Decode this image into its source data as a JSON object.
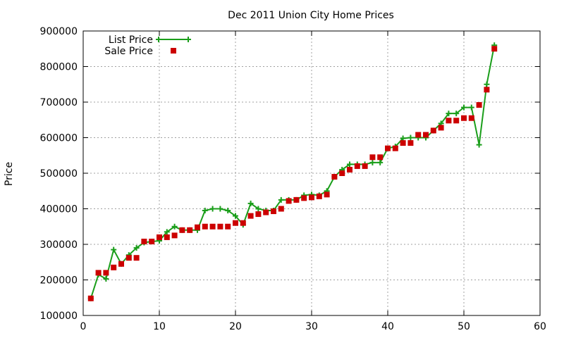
{
  "chart_data": {
    "type": "line",
    "title": "Dec 2011 Union City Home Prices",
    "xlabel": "",
    "ylabel": "Price",
    "xlim": [
      0,
      60
    ],
    "ylim": [
      100000,
      900000
    ],
    "x_ticks": [
      0,
      10,
      20,
      30,
      40,
      50,
      60
    ],
    "y_ticks": [
      100000,
      200000,
      300000,
      400000,
      500000,
      600000,
      700000,
      800000,
      900000
    ],
    "grid": true,
    "legend_position": "top-left",
    "series": [
      {
        "name": "List Price",
        "style": "lines+crosses",
        "color": "#1a9e1a",
        "x": [
          1,
          2,
          3,
          4,
          5,
          6,
          7,
          8,
          9,
          10,
          11,
          12,
          13,
          14,
          15,
          16,
          17,
          18,
          19,
          20,
          21,
          22,
          23,
          24,
          25,
          26,
          27,
          28,
          29,
          30,
          31,
          32,
          33,
          34,
          35,
          36,
          37,
          38,
          39,
          40,
          41,
          42,
          43,
          44,
          45,
          46,
          47,
          48,
          49,
          50,
          51,
          52,
          53,
          54
        ],
        "y": [
          148000,
          215000,
          203000,
          285000,
          245000,
          270000,
          290000,
          305000,
          308000,
          310000,
          335000,
          350000,
          340000,
          340000,
          340000,
          395000,
          400000,
          400000,
          395000,
          380000,
          355000,
          415000,
          400000,
          395000,
          395000,
          425000,
          425000,
          425000,
          438000,
          440000,
          438000,
          450000,
          490000,
          510000,
          525000,
          525000,
          525000,
          530000,
          530000,
          570000,
          575000,
          598000,
          600000,
          600000,
          600000,
          620000,
          640000,
          668000,
          668000,
          685000,
          685000,
          580000,
          750000,
          860000
        ]
      },
      {
        "name": "Sale Price",
        "style": "points",
        "color": "#cc0000",
        "x": [
          1,
          2,
          3,
          4,
          5,
          6,
          7,
          8,
          9,
          10,
          11,
          12,
          13,
          14,
          15,
          16,
          17,
          18,
          19,
          20,
          21,
          22,
          23,
          24,
          25,
          26,
          27,
          28,
          29,
          30,
          31,
          32,
          33,
          34,
          35,
          36,
          37,
          38,
          39,
          40,
          41,
          42,
          43,
          44,
          45,
          46,
          47,
          48,
          49,
          50,
          51,
          52,
          53,
          54
        ],
        "y": [
          148000,
          220000,
          220000,
          235000,
          245000,
          262000,
          262000,
          308000,
          308000,
          320000,
          320000,
          325000,
          340000,
          340000,
          348000,
          350000,
          350000,
          350000,
          350000,
          360000,
          360000,
          380000,
          385000,
          390000,
          393000,
          400000,
          422000,
          425000,
          430000,
          432000,
          435000,
          440000,
          490000,
          500000,
          510000,
          520000,
          520000,
          545000,
          545000,
          570000,
          570000,
          585000,
          585000,
          608000,
          608000,
          620000,
          628000,
          648000,
          648000,
          655000,
          655000,
          692000,
          735000,
          850000
        ]
      }
    ]
  }
}
